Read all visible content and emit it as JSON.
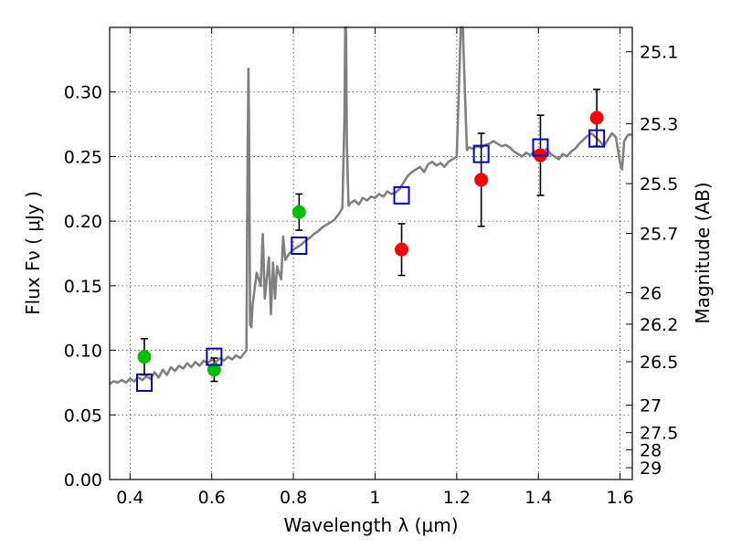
{
  "chart_data": {
    "type": "scatter",
    "title": "",
    "xlabel": "Wavelength  λ (μm)",
    "ylabel": "Flux  Fν  ( μJy )",
    "y2label": "Magnitude (AB)",
    "xlim": [
      0.35,
      1.63
    ],
    "ylim": [
      0.0,
      0.35
    ],
    "grid": true,
    "x_ticks": [
      0.4,
      0.6,
      0.8,
      1.0,
      1.2,
      1.4,
      1.6
    ],
    "x_tick_labels": [
      "0.4",
      "0.6",
      "0.8",
      "1",
      "1.2",
      "1.4",
      "1.6"
    ],
    "y_ticks": [
      0.0,
      0.05,
      0.1,
      0.15,
      0.2,
      0.25,
      0.3
    ],
    "y_tick_labels": [
      "0.00",
      "0.05",
      "0.10",
      "0.15",
      "0.20",
      "0.25",
      "0.30"
    ],
    "mag_ticks": [
      25.1,
      25.3,
      25.5,
      25.7,
      26,
      26.2,
      26.5,
      27,
      27.5,
      28,
      29
    ],
    "mag_tick_labels": [
      "25.1",
      "25.3",
      "25.5",
      "25.7",
      "26",
      "26.2",
      "26.5",
      "27",
      "27.5",
      "28",
      "29"
    ],
    "series": [
      {
        "kind": "line",
        "color": "#808080",
        "points": [
          [
            0.35,
            0.074
          ],
          [
            0.36,
            0.076
          ],
          [
            0.37,
            0.075
          ],
          [
            0.38,
            0.077
          ],
          [
            0.39,
            0.075
          ],
          [
            0.4,
            0.078
          ],
          [
            0.41,
            0.076
          ],
          [
            0.42,
            0.079
          ],
          [
            0.43,
            0.077
          ],
          [
            0.44,
            0.08
          ],
          [
            0.45,
            0.078
          ],
          [
            0.46,
            0.083
          ],
          [
            0.47,
            0.079
          ],
          [
            0.48,
            0.085
          ],
          [
            0.49,
            0.081
          ],
          [
            0.5,
            0.087
          ],
          [
            0.51,
            0.084
          ],
          [
            0.52,
            0.088
          ],
          [
            0.53,
            0.086
          ],
          [
            0.54,
            0.09
          ],
          [
            0.55,
            0.087
          ],
          [
            0.56,
            0.091
          ],
          [
            0.57,
            0.088
          ],
          [
            0.58,
            0.092
          ],
          [
            0.59,
            0.09
          ],
          [
            0.6,
            0.093
          ],
          [
            0.61,
            0.091
          ],
          [
            0.62,
            0.094
          ],
          [
            0.63,
            0.092
          ],
          [
            0.64,
            0.095
          ],
          [
            0.65,
            0.093
          ],
          [
            0.66,
            0.096
          ],
          [
            0.67,
            0.094
          ],
          [
            0.68,
            0.098
          ],
          [
            0.685,
            0.1
          ],
          [
            0.688,
            0.25
          ],
          [
            0.69,
            0.318
          ],
          [
            0.692,
            0.25
          ],
          [
            0.694,
            0.12
          ],
          [
            0.697,
            0.118
          ],
          [
            0.7,
            0.135
          ],
          [
            0.71,
            0.16
          ],
          [
            0.72,
            0.15
          ],
          [
            0.725,
            0.19
          ],
          [
            0.73,
            0.14
          ],
          [
            0.74,
            0.172
          ],
          [
            0.745,
            0.128
          ],
          [
            0.75,
            0.168
          ],
          [
            0.755,
            0.14
          ],
          [
            0.76,
            0.165
          ],
          [
            0.77,
            0.155
          ],
          [
            0.775,
            0.188
          ],
          [
            0.78,
            0.17
          ],
          [
            0.79,
            0.175
          ],
          [
            0.8,
            0.178
          ],
          [
            0.81,
            0.18
          ],
          [
            0.82,
            0.182
          ],
          [
            0.83,
            0.185
          ],
          [
            0.84,
            0.187
          ],
          [
            0.85,
            0.19
          ],
          [
            0.86,
            0.192
          ],
          [
            0.87,
            0.195
          ],
          [
            0.88,
            0.197
          ],
          [
            0.89,
            0.199
          ],
          [
            0.9,
            0.201
          ],
          [
            0.91,
            0.205
          ],
          [
            0.92,
            0.21
          ],
          [
            0.925,
            0.28
          ],
          [
            0.927,
            0.35
          ],
          [
            0.929,
            0.35
          ],
          [
            0.931,
            0.26
          ],
          [
            0.935,
            0.212
          ],
          [
            0.94,
            0.214
          ],
          [
            0.95,
            0.216
          ],
          [
            0.96,
            0.213
          ],
          [
            0.97,
            0.218
          ],
          [
            0.98,
            0.216
          ],
          [
            0.99,
            0.219
          ],
          [
            1.0,
            0.218
          ],
          [
            1.01,
            0.221
          ],
          [
            1.02,
            0.219
          ],
          [
            1.03,
            0.223
          ],
          [
            1.04,
            0.221
          ],
          [
            1.05,
            0.222
          ],
          [
            1.06,
            0.225
          ],
          [
            1.07,
            0.23
          ],
          [
            1.08,
            0.235
          ],
          [
            1.09,
            0.238
          ],
          [
            1.1,
            0.24
          ],
          [
            1.11,
            0.242
          ],
          [
            1.12,
            0.238
          ],
          [
            1.13,
            0.244
          ],
          [
            1.14,
            0.246
          ],
          [
            1.15,
            0.243
          ],
          [
            1.16,
            0.245
          ],
          [
            1.17,
            0.242
          ],
          [
            1.18,
            0.246
          ],
          [
            1.19,
            0.248
          ],
          [
            1.2,
            0.25
          ],
          [
            1.205,
            0.3
          ],
          [
            1.21,
            0.35
          ],
          [
            1.215,
            0.35
          ],
          [
            1.22,
            0.3
          ],
          [
            1.225,
            0.255
          ],
          [
            1.23,
            0.257
          ],
          [
            1.24,
            0.256
          ],
          [
            1.25,
            0.258
          ],
          [
            1.26,
            0.257
          ],
          [
            1.27,
            0.259
          ],
          [
            1.28,
            0.26
          ],
          [
            1.29,
            0.262
          ],
          [
            1.3,
            0.26
          ],
          [
            1.31,
            0.258
          ],
          [
            1.32,
            0.259
          ],
          [
            1.33,
            0.257
          ],
          [
            1.34,
            0.254
          ],
          [
            1.35,
            0.252
          ],
          [
            1.36,
            0.25
          ],
          [
            1.37,
            0.253
          ],
          [
            1.38,
            0.251
          ],
          [
            1.39,
            0.254
          ],
          [
            1.4,
            0.255
          ],
          [
            1.41,
            0.253
          ],
          [
            1.42,
            0.256
          ],
          [
            1.43,
            0.252
          ],
          [
            1.44,
            0.25
          ],
          [
            1.45,
            0.248
          ],
          [
            1.46,
            0.252
          ],
          [
            1.47,
            0.25
          ],
          [
            1.48,
            0.254
          ],
          [
            1.49,
            0.256
          ],
          [
            1.5,
            0.26
          ],
          [
            1.51,
            0.263
          ],
          [
            1.52,
            0.266
          ],
          [
            1.53,
            0.268
          ],
          [
            1.54,
            0.265
          ],
          [
            1.55,
            0.262
          ],
          [
            1.56,
            0.258
          ],
          [
            1.57,
            0.263
          ],
          [
            1.58,
            0.268
          ],
          [
            1.59,
            0.265
          ],
          [
            1.6,
            0.245
          ],
          [
            1.605,
            0.24
          ],
          [
            1.61,
            0.262
          ],
          [
            1.62,
            0.267
          ],
          [
            1.63,
            0.267
          ]
        ]
      },
      {
        "kind": "points",
        "marker": "circle",
        "color": "#00bf00",
        "points": [
          {
            "x": 0.435,
            "y": 0.095,
            "err": 0.014
          },
          {
            "x": 0.606,
            "y": 0.085,
            "err": 0.009
          },
          {
            "x": 0.814,
            "y": 0.207,
            "err": 0.014
          }
        ]
      },
      {
        "kind": "points",
        "marker": "circle",
        "color": "#ff0000",
        "points": [
          {
            "x": 1.065,
            "y": 0.178,
            "err": 0.02
          },
          {
            "x": 1.26,
            "y": 0.232,
            "err": 0.036
          },
          {
            "x": 1.405,
            "y": 0.251,
            "err": 0.031
          },
          {
            "x": 1.543,
            "y": 0.28,
            "err": 0.022
          }
        ]
      },
      {
        "kind": "points",
        "marker": "square",
        "color": "#0000cc",
        "points": [
          {
            "x": 0.435,
            "y": 0.075
          },
          {
            "x": 0.606,
            "y": 0.095
          },
          {
            "x": 0.814,
            "y": 0.181
          },
          {
            "x": 1.065,
            "y": 0.22
          },
          {
            "x": 1.26,
            "y": 0.252
          },
          {
            "x": 1.405,
            "y": 0.257
          },
          {
            "x": 1.543,
            "y": 0.264
          }
        ]
      }
    ]
  }
}
